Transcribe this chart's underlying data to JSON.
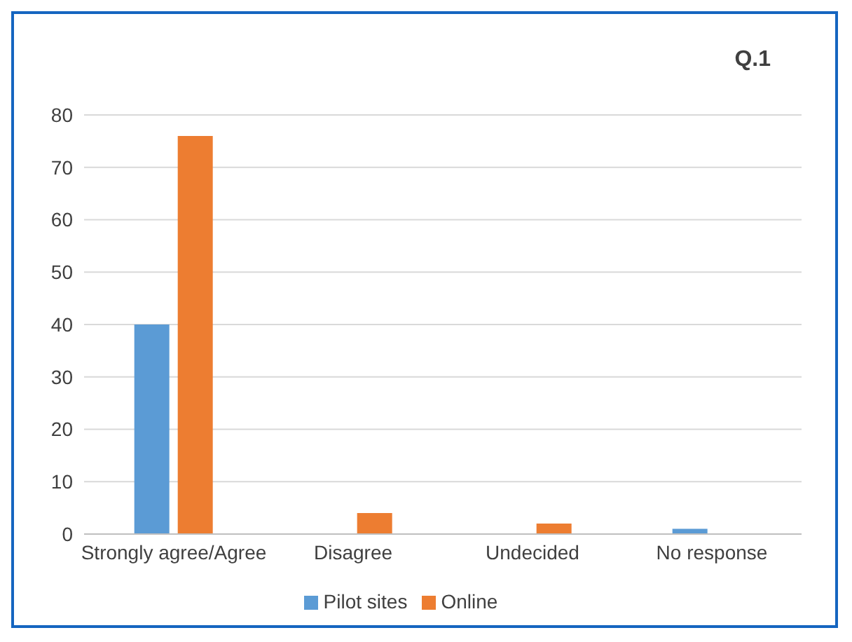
{
  "chart_data": {
    "type": "bar",
    "title": "Q.1",
    "categories": [
      "Strongly agree/Agree",
      "Disagree",
      "Undecided",
      "No response"
    ],
    "series": [
      {
        "name": "Pilot sites",
        "color": "#5b9bd5",
        "values": [
          40,
          0,
          0,
          1
        ]
      },
      {
        "name": "Online",
        "color": "#ed7d31",
        "values": [
          76,
          4,
          2,
          0
        ]
      }
    ],
    "ylim": [
      0,
      80
    ],
    "yticks": [
      0,
      10,
      20,
      30,
      40,
      50,
      60,
      70,
      80
    ],
    "grid": "y",
    "legend": "bottom"
  }
}
